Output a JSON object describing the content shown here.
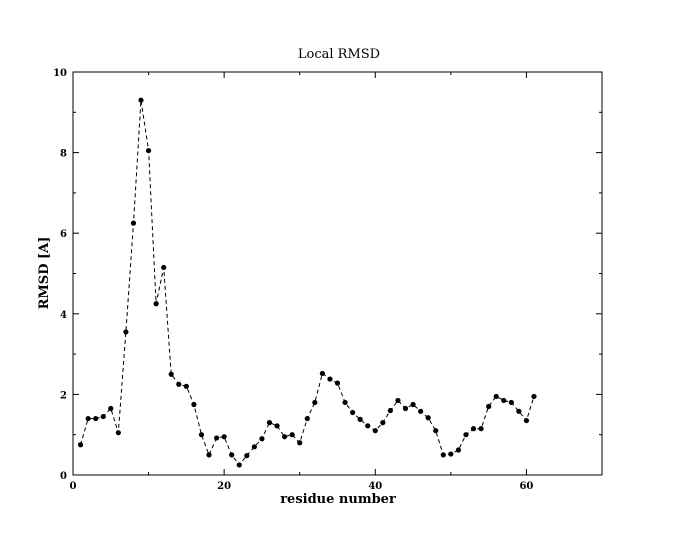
{
  "chart_data": {
    "type": "line",
    "title": "Local RMSD",
    "xlabel": "residue number",
    "ylabel": "RMSD [A]",
    "xlim": [
      0,
      70
    ],
    "ylim": [
      0,
      10
    ],
    "xticks": [
      0,
      20,
      40,
      60
    ],
    "yticks": [
      0,
      2,
      4,
      6,
      8,
      10
    ],
    "grid": false,
    "line_style": "dashed",
    "marker": "filled-circle",
    "colors": {
      "line": "#000000",
      "marker": "#000000"
    },
    "series": [
      {
        "x": [
          1,
          2,
          3,
          4,
          5,
          6,
          7,
          8,
          9,
          10,
          11,
          12,
          13,
          14,
          15,
          16,
          17,
          18,
          19,
          20,
          21,
          22,
          23,
          24,
          25,
          26,
          27,
          28,
          29,
          30,
          31,
          32,
          33,
          34,
          35,
          36,
          37,
          38,
          39,
          40,
          41,
          42,
          43,
          44,
          45,
          46,
          47,
          48,
          49,
          50,
          51,
          52,
          53,
          54,
          55,
          56,
          57,
          58,
          59,
          60,
          61
        ],
        "y": [
          0.75,
          1.4,
          1.4,
          1.45,
          1.65,
          1.05,
          3.55,
          6.25,
          9.3,
          8.05,
          4.25,
          5.15,
          2.5,
          2.25,
          2.2,
          1.75,
          1.0,
          0.5,
          0.92,
          0.95,
          0.5,
          0.25,
          0.48,
          0.7,
          0.9,
          1.3,
          1.22,
          0.95,
          1.0,
          0.8,
          1.4,
          1.8,
          2.52,
          2.38,
          2.28,
          1.8,
          1.55,
          1.38,
          1.22,
          1.1,
          1.3,
          1.6,
          1.85,
          1.65,
          1.75,
          1.58,
          1.42,
          1.1,
          0.5,
          0.52,
          0.62,
          1.0,
          1.15,
          1.15,
          1.7,
          1.95,
          1.85,
          1.8,
          1.58,
          1.35,
          1.95
        ]
      }
    ]
  }
}
